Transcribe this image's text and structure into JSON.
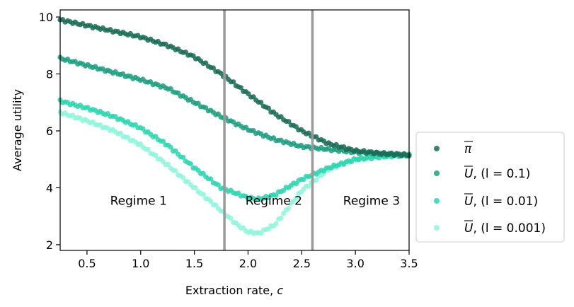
{
  "chart_data": {
    "type": "scatter",
    "xlabel": "Extraction rate, c",
    "ylabel": "Average utility",
    "xlim": [
      0.25,
      3.5
    ],
    "ylim": [
      1.8,
      10.25
    ],
    "xticks": [
      0.5,
      1.0,
      1.5,
      2.0,
      2.5,
      3.0,
      3.5
    ],
    "xtick_labels": [
      "0.5",
      "1.0",
      "1.5",
      "2.0",
      "2.5",
      "3.0",
      "3.5"
    ],
    "yticks": [
      2,
      4,
      6,
      8,
      10
    ],
    "ytick_labels": [
      "2",
      "4",
      "6",
      "8",
      "10"
    ],
    "vlines": [
      1.78,
      2.6
    ],
    "vline_color": "#999999",
    "regimes": [
      {
        "label": "Regime 1",
        "x": 0.98,
        "y": 3.55
      },
      {
        "label": "Regime 2",
        "x": 2.24,
        "y": 3.55
      },
      {
        "label": "Regime 3",
        "x": 3.15,
        "y": 3.55
      }
    ],
    "legend": {
      "position": "outside-right"
    },
    "series": [
      {
        "name": "π̄",
        "legend": {
          "base": "π",
          "suffix": ""
        },
        "color": "#1a6b56",
        "x": [
          0.25,
          0.5,
          0.75,
          1.0,
          1.25,
          1.5,
          1.75,
          2.0,
          2.25,
          2.5,
          2.75,
          3.0,
          3.25,
          3.5
        ],
        "y": [
          9.9,
          9.7,
          9.5,
          9.3,
          9.0,
          8.6,
          8.0,
          7.3,
          6.6,
          6.0,
          5.55,
          5.3,
          5.2,
          5.15
        ]
      },
      {
        "name": "Ū,(l = 0.1)",
        "legend": {
          "base": "U",
          "suffix": ", (l = 0.1)"
        },
        "color": "#1e9e80",
        "x": [
          0.25,
          0.5,
          0.75,
          1.0,
          1.25,
          1.5,
          1.75,
          2.0,
          2.25,
          2.5,
          2.75,
          3.0,
          3.25,
          3.5
        ],
        "y": [
          8.55,
          8.3,
          8.05,
          7.8,
          7.5,
          7.0,
          6.5,
          6.05,
          5.7,
          5.45,
          5.35,
          5.25,
          5.2,
          5.15
        ]
      },
      {
        "name": "Ū,(l = 0.01)",
        "legend": {
          "base": "U",
          "suffix": ", (l = 0.01)"
        },
        "color": "#2fd4b0",
        "x": [
          0.25,
          0.5,
          0.75,
          1.0,
          1.25,
          1.5,
          1.75,
          2.0,
          2.1,
          2.25,
          2.5,
          2.75,
          3.0,
          3.25,
          3.5
        ],
        "y": [
          7.05,
          6.8,
          6.5,
          6.1,
          5.5,
          4.7,
          4.0,
          3.65,
          3.6,
          3.75,
          4.3,
          4.7,
          5.0,
          5.1,
          5.15
        ]
      },
      {
        "name": "Ū,(l = 0.001)",
        "legend": {
          "base": "U",
          "suffix": ", (l = 0.001)"
        },
        "color": "#8ff5dc",
        "x": [
          0.25,
          0.5,
          0.75,
          1.0,
          1.25,
          1.5,
          1.75,
          1.9,
          2.0,
          2.1,
          2.25,
          2.5,
          2.75,
          3.0,
          3.25,
          3.5
        ],
        "y": [
          6.65,
          6.35,
          6.0,
          5.5,
          4.8,
          4.0,
          3.2,
          2.7,
          2.45,
          2.4,
          2.7,
          3.9,
          4.65,
          5.0,
          5.1,
          5.15
        ]
      }
    ]
  }
}
